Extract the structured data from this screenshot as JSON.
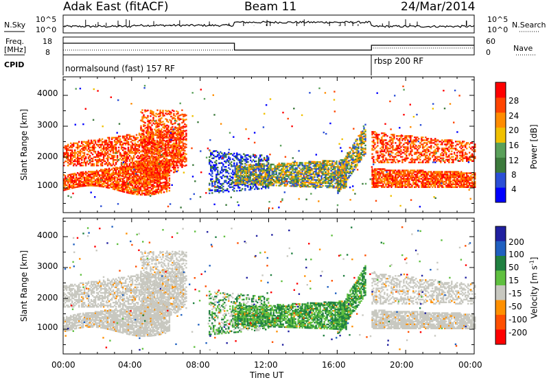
{
  "header": {
    "station": "Adak East (fitACF)",
    "beam": "Beam 11",
    "date": "24/Mar/2014"
  },
  "top_panel": {
    "left_label": "N.Sky",
    "right_label": "N.Search",
    "y_ticks": [
      "10^5",
      "10^0"
    ],
    "right_ticks": [
      "10^5",
      "10^0"
    ]
  },
  "freq_panel": {
    "left_label_1": "Freq.",
    "left_label_2": "[MHz]",
    "left_ticks": [
      "18",
      "8"
    ],
    "right_ticks": [
      "60",
      "0"
    ],
    "right_label": "Nave"
  },
  "cpid_panel": {
    "label": "CPID",
    "mode_1": "normalsound (fast) 157 RF",
    "mode_2": "rbsp 200 RF"
  },
  "colors": {
    "power_scale": [
      "#0000ff",
      "#2b4fd6",
      "#3c7a3c",
      "#5aa05a",
      "#f0c000",
      "#ff8c00",
      "#ff4400",
      "#ff0000"
    ],
    "velocity_scale": [
      "#2020a0",
      "#2060c0",
      "#208040",
      "#60c040",
      "#c8c8c0",
      "#ff9000",
      "#ff5000",
      "#ff0000"
    ]
  },
  "chart_data": [
    {
      "type": "heatmap",
      "title": "",
      "xlabel": "Time UT",
      "ylabel": "Slant Range [km]",
      "x_ticks": [
        "00:00",
        "04:00",
        "08:00",
        "12:00",
        "16:00",
        "20:00",
        "00:00"
      ],
      "y_ticks": [
        "1000",
        "2000",
        "3000",
        "4000"
      ],
      "xlim": [
        0,
        24
      ],
      "ylim": [
        200,
        4600
      ],
      "colorbar": {
        "label": "Power [dB]",
        "ticks": [
          "28",
          "24",
          "20",
          "16",
          "12",
          "8",
          "4"
        ]
      }
    },
    {
      "type": "heatmap",
      "title": "",
      "xlabel": "Time UT",
      "ylabel": "Slant Range [km]",
      "x_ticks": [
        "00:00",
        "04:00",
        "08:00",
        "12:00",
        "16:00",
        "20:00",
        "00:00"
      ],
      "y_ticks": [
        "1000",
        "2000",
        "3000",
        "4000"
      ],
      "xlim": [
        0,
        24
      ],
      "ylim": [
        200,
        4600
      ],
      "colorbar": {
        "label_main": "Velocity [m s",
        "label_exp": "-1",
        "label_close": "]",
        "ticks": [
          "200",
          "100",
          "50",
          "15",
          "-15",
          "-50",
          "-100",
          "-200"
        ]
      }
    }
  ]
}
